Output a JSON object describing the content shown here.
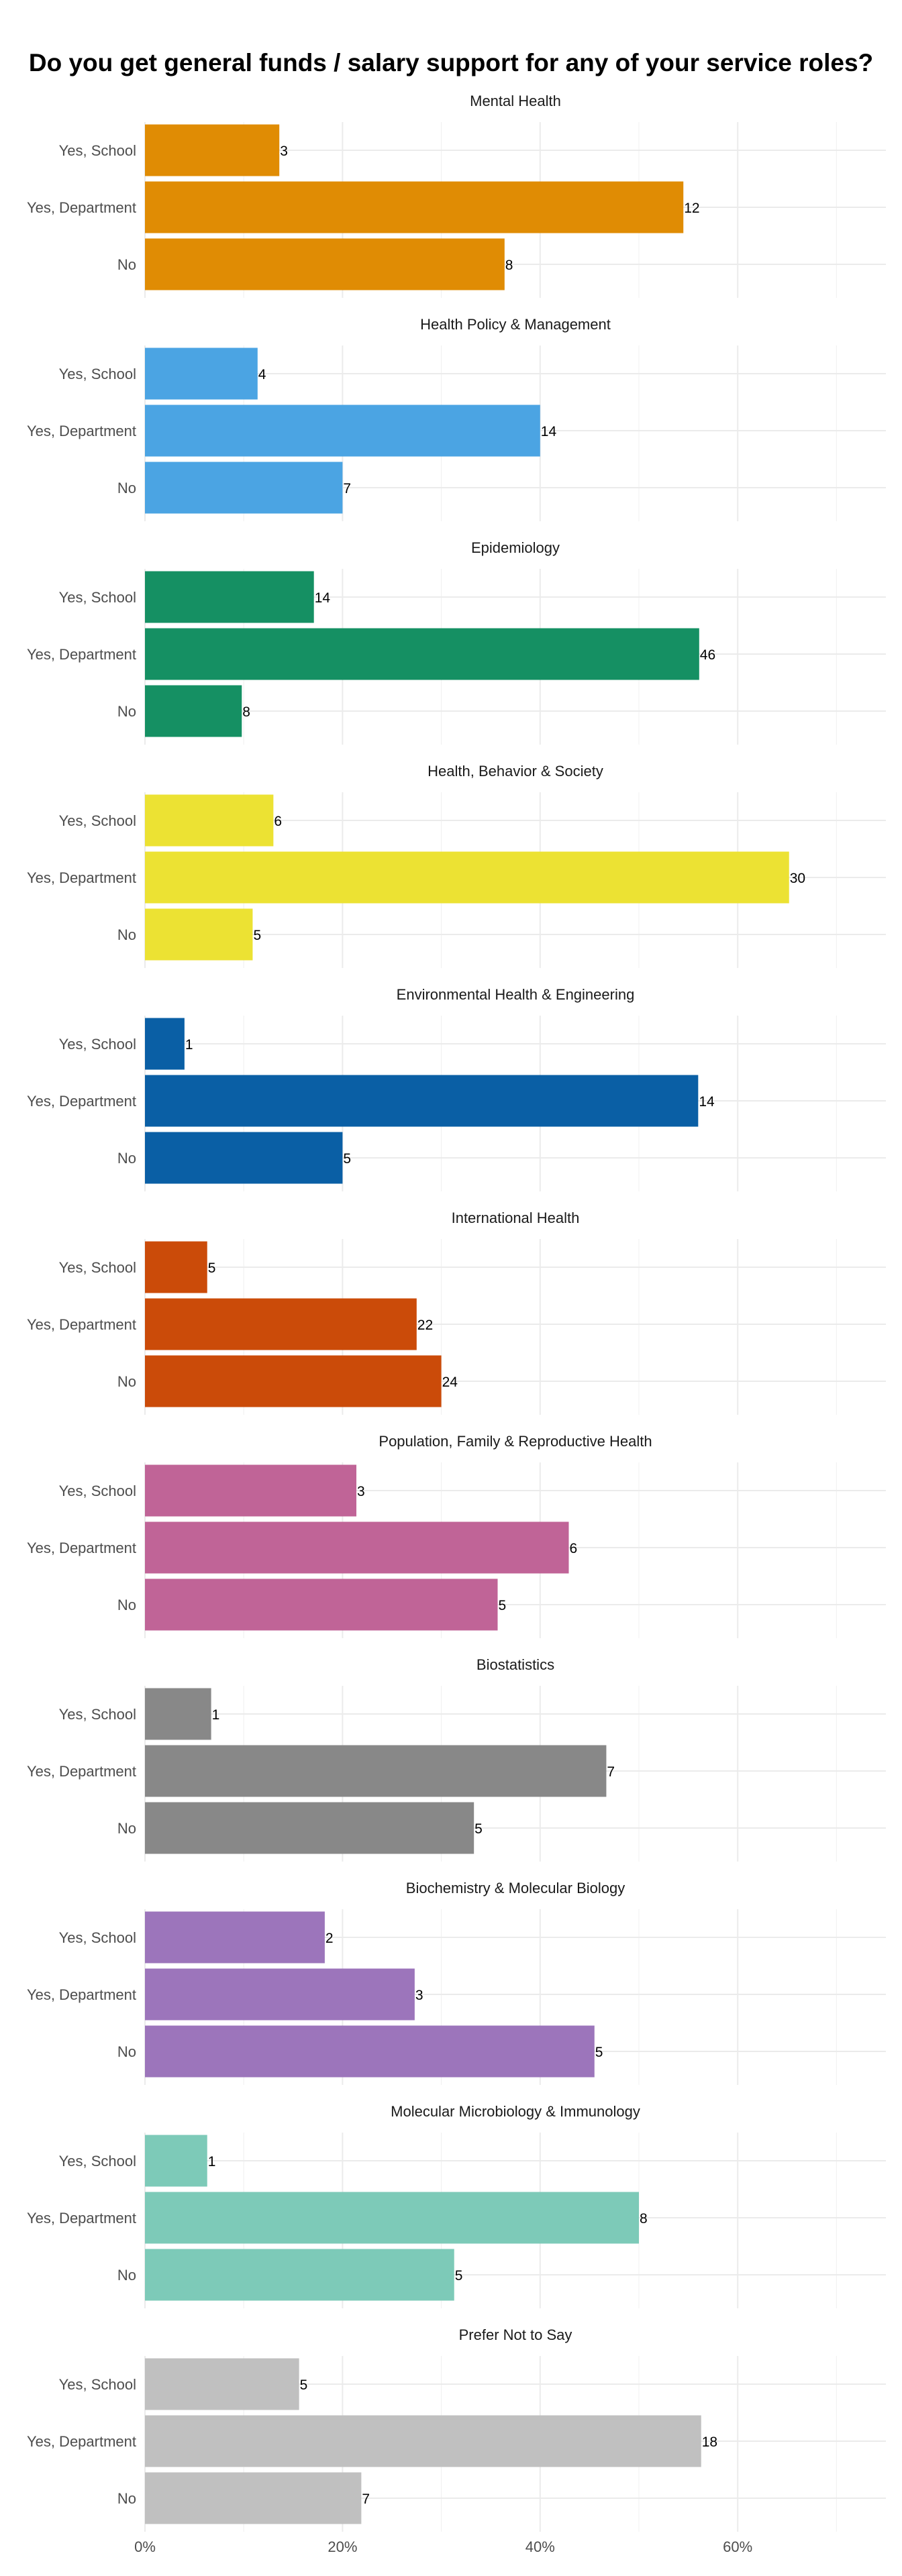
{
  "chart_data": {
    "type": "bar",
    "orientation": "horizontal",
    "title": "Do you get general funds / salary support for any of your service roles?",
    "xlabel": "",
    "ylabel": "",
    "x_tick_labels": [
      "0%",
      "20%",
      "40%",
      "60%"
    ],
    "xlim": [
      0,
      0.75
    ],
    "grid": true,
    "legend": "none",
    "categories": [
      "Yes, School",
      "Yes, Department",
      "No"
    ],
    "panels": [
      {
        "name": "Mental Health",
        "color": "#E08C04",
        "counts": [
          3,
          12,
          8
        ],
        "shares": [
          0.136,
          0.545,
          0.364
        ]
      },
      {
        "name": "Health Policy & Management",
        "color": "#4BA4E3",
        "counts": [
          4,
          14,
          7
        ],
        "shares": [
          0.114,
          0.4,
          0.2
        ]
      },
      {
        "name": "Epidemiology",
        "color": "#159063",
        "counts": [
          14,
          46,
          8
        ],
        "shares": [
          0.171,
          0.561,
          0.098
        ]
      },
      {
        "name": "Health, Behavior & Society",
        "color": "#ECE233",
        "counts": [
          6,
          30,
          5
        ],
        "shares": [
          0.13,
          0.652,
          0.109
        ]
      },
      {
        "name": "Environmental Health & Engineering",
        "color": "#0A5FA5",
        "counts": [
          1,
          14,
          5
        ],
        "shares": [
          0.04,
          0.56,
          0.2
        ]
      },
      {
        "name": "International Health",
        "color": "#CB4B09",
        "counts": [
          5,
          22,
          24
        ],
        "shares": [
          0.063,
          0.275,
          0.3
        ]
      },
      {
        "name": "Population, Family & Reproductive Health",
        "color": "#C06497",
        "counts": [
          3,
          6,
          5
        ],
        "shares": [
          0.214,
          0.429,
          0.357
        ]
      },
      {
        "name": "Biostatistics",
        "color": "#888888",
        "counts": [
          1,
          7,
          5
        ],
        "shares": [
          0.067,
          0.467,
          0.333
        ]
      },
      {
        "name": "Biochemistry & Molecular Biology",
        "color": "#9C75BB",
        "counts": [
          2,
          3,
          5
        ],
        "shares": [
          0.182,
          0.273,
          0.455
        ]
      },
      {
        "name": "Molecular Microbiology & Immunology",
        "color": "#7DCAB8",
        "counts": [
          1,
          8,
          5
        ],
        "shares": [
          0.063,
          0.5,
          0.313
        ]
      },
      {
        "name": "Prefer Not to Say",
        "color": "#C0C0C0",
        "counts": [
          5,
          18,
          7
        ],
        "shares": [
          0.156,
          0.563,
          0.219
        ]
      }
    ]
  }
}
